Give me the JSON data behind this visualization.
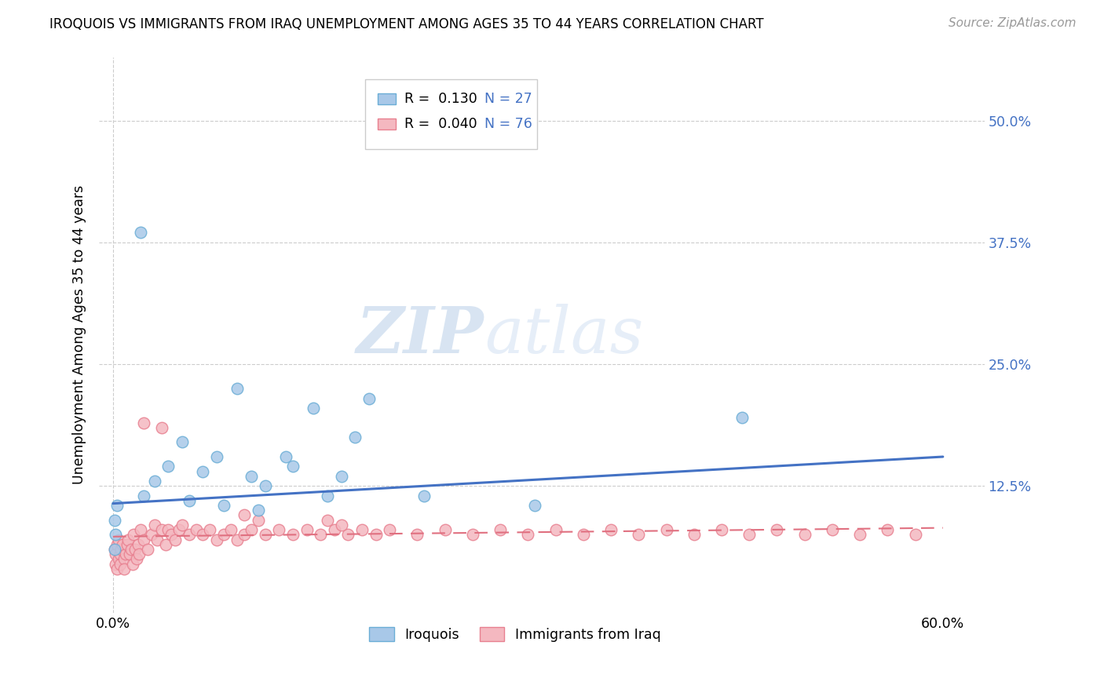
{
  "title": "IROQUOIS VS IMMIGRANTS FROM IRAQ UNEMPLOYMENT AMONG AGES 35 TO 44 YEARS CORRELATION CHART",
  "source": "Source: ZipAtlas.com",
  "ylabel": "Unemployment Among Ages 35 to 44 years",
  "watermark_zip": "ZIP",
  "watermark_atlas": "atlas",
  "color_iroquois_fill": "#a8c8e8",
  "color_iroquois_edge": "#6baed6",
  "color_iraq_fill": "#f4b8c0",
  "color_iraq_edge": "#e88090",
  "color_iroquois_line": "#4472c4",
  "color_iraq_line": "#e07080",
  "color_grid": "#cccccc",
  "color_ytick": "#4472c4",
  "iroquois_x": [
    0.003,
    0.02,
    0.001,
    0.002,
    0.001,
    0.022,
    0.03,
    0.04,
    0.05,
    0.055,
    0.065,
    0.075,
    0.08,
    0.09,
    0.1,
    0.105,
    0.11,
    0.125,
    0.13,
    0.145,
    0.155,
    0.165,
    0.175,
    0.185,
    0.225,
    0.305,
    0.455
  ],
  "iroquois_y": [
    0.105,
    0.385,
    0.09,
    0.075,
    0.06,
    0.115,
    0.13,
    0.145,
    0.17,
    0.11,
    0.14,
    0.155,
    0.105,
    0.225,
    0.135,
    0.1,
    0.125,
    0.155,
    0.145,
    0.205,
    0.115,
    0.135,
    0.175,
    0.215,
    0.115,
    0.105,
    0.195
  ],
  "iraq_x": [
    0.001,
    0.002,
    0.002,
    0.003,
    0.003,
    0.004,
    0.004,
    0.005,
    0.005,
    0.006,
    0.007,
    0.008,
    0.008,
    0.009,
    0.01,
    0.011,
    0.012,
    0.013,
    0.014,
    0.015,
    0.016,
    0.017,
    0.018,
    0.019,
    0.02,
    0.022,
    0.025,
    0.028,
    0.03,
    0.032,
    0.035,
    0.038,
    0.04,
    0.042,
    0.045,
    0.048,
    0.05,
    0.055,
    0.06,
    0.065,
    0.07,
    0.075,
    0.08,
    0.085,
    0.09,
    0.095,
    0.1,
    0.11,
    0.12,
    0.13,
    0.14,
    0.15,
    0.16,
    0.17,
    0.18,
    0.19,
    0.2,
    0.22,
    0.24,
    0.26,
    0.28,
    0.3,
    0.32,
    0.34,
    0.36,
    0.38,
    0.4,
    0.42,
    0.44,
    0.46,
    0.48,
    0.5,
    0.52,
    0.54,
    0.56,
    0.58
  ],
  "iraq_y": [
    0.06,
    0.045,
    0.055,
    0.04,
    0.065,
    0.05,
    0.07,
    0.055,
    0.045,
    0.06,
    0.065,
    0.05,
    0.04,
    0.055,
    0.065,
    0.07,
    0.055,
    0.06,
    0.045,
    0.075,
    0.06,
    0.05,
    0.065,
    0.055,
    0.08,
    0.07,
    0.06,
    0.075,
    0.085,
    0.07,
    0.08,
    0.065,
    0.08,
    0.075,
    0.07,
    0.08,
    0.085,
    0.075,
    0.08,
    0.075,
    0.08,
    0.07,
    0.075,
    0.08,
    0.07,
    0.075,
    0.08,
    0.075,
    0.08,
    0.075,
    0.08,
    0.075,
    0.08,
    0.075,
    0.08,
    0.075,
    0.08,
    0.075,
    0.08,
    0.075,
    0.08,
    0.075,
    0.08,
    0.075,
    0.08,
    0.075,
    0.08,
    0.075,
    0.08,
    0.075,
    0.08,
    0.075,
    0.08,
    0.075,
    0.08,
    0.075
  ],
  "iraq_extra_x": [
    0.022,
    0.035,
    0.095,
    0.105,
    0.155,
    0.165
  ],
  "iraq_extra_y": [
    0.19,
    0.185,
    0.095,
    0.09,
    0.09,
    0.085
  ],
  "iroquois_trend_x": [
    0.0,
    0.6
  ],
  "iroquois_trend_y": [
    0.107,
    0.155
  ],
  "iraq_trend_x": [
    0.0,
    0.6
  ],
  "iraq_trend_y": [
    0.073,
    0.082
  ],
  "xlim": [
    -0.01,
    0.63
  ],
  "ylim": [
    -0.005,
    0.565
  ],
  "ytick_vals": [
    0.0,
    0.125,
    0.25,
    0.375,
    0.5
  ],
  "ytick_labels": [
    "",
    "12.5%",
    "25.0%",
    "37.5%",
    "50.0%"
  ],
  "xtick_vals": [
    0.0,
    0.1,
    0.2,
    0.3,
    0.4,
    0.5,
    0.6
  ],
  "xtick_labels": [
    "0.0%",
    "",
    "",
    "",
    "",
    "",
    "60.0%"
  ]
}
